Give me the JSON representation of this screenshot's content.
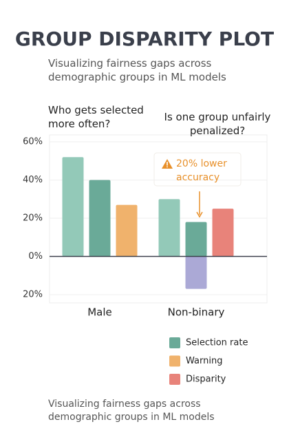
{
  "chart_data": {
    "type": "bar",
    "title": "GROUP DISPARITY PLOT",
    "subtitle": "Visualizing fairness gaps across demographic groups in ML models",
    "questions": [
      "Who gets selected more often?",
      "Is one group unfairly penalized?"
    ],
    "annotation": "20% lower accuracy",
    "footer": "Visualizing fairness gaps across demographic groups in ML models",
    "categories": [
      "Male",
      "Non-binary"
    ],
    "series": [
      {
        "color": "#93c9b8",
        "values": [
          52,
          30
        ]
      },
      {
        "name": "Selection rate",
        "color": "#6aaa98",
        "values": [
          40,
          18
        ]
      },
      {
        "name": "Warning",
        "color": "#f0b26c",
        "values": [
          27,
          null
        ]
      },
      {
        "name": "Disparity",
        "color": "#e8837a",
        "values": [
          null,
          25
        ]
      },
      {
        "color": "#aba9d6",
        "values": [
          null,
          -17
        ]
      }
    ],
    "ylim": [
      -20,
      60
    ],
    "yticks": [
      {
        "value": 60,
        "label": "60%"
      },
      {
        "value": 40,
        "label": "40%"
      },
      {
        "value": 20,
        "label": "20%"
      },
      {
        "value": 0,
        "label": "0%"
      },
      {
        "value": -20,
        "label": "20%"
      }
    ],
    "grid": true
  }
}
